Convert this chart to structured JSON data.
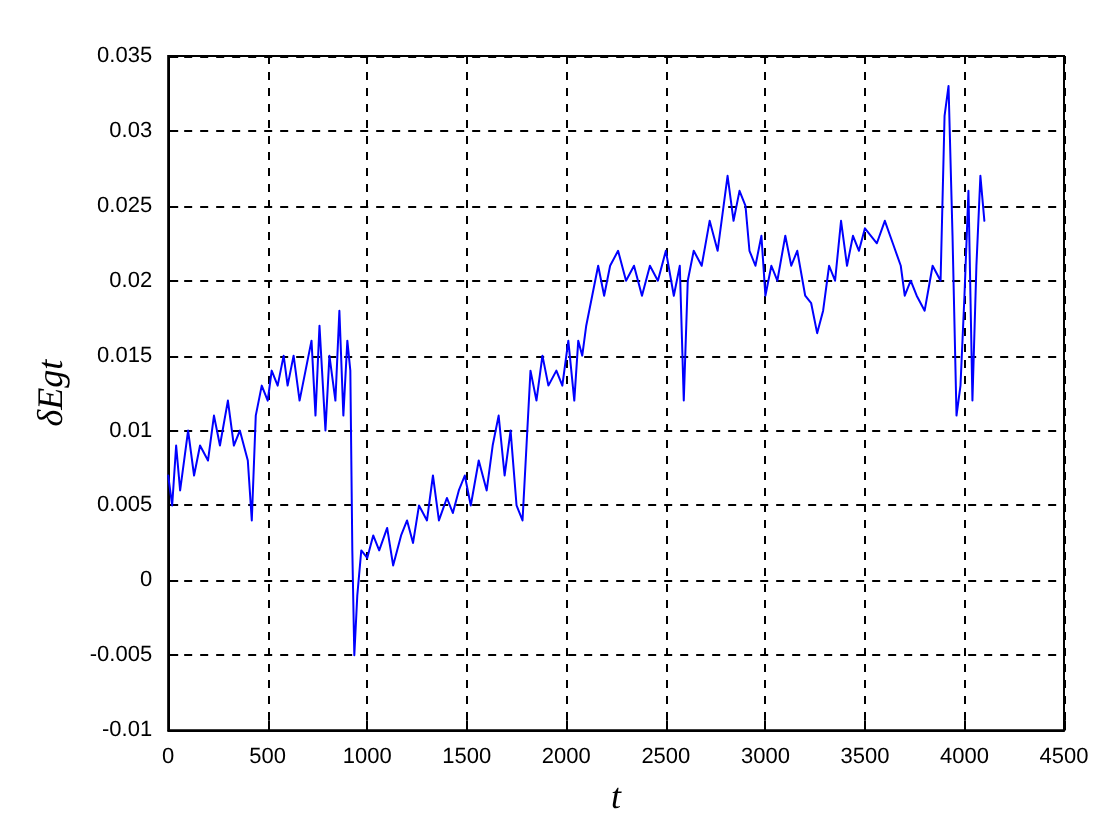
{
  "chart_data": {
    "type": "line",
    "xlabel": "t",
    "ylabel": "δEgt",
    "grid": true,
    "marker": "none",
    "line_style": "solid",
    "xlim": [
      0,
      4500
    ],
    "xticks": [
      0,
      500,
      1000,
      1500,
      2000,
      2500,
      3000,
      3500,
      4000,
      4500
    ],
    "ylim": [
      -0.01,
      0.035
    ],
    "yticks": [
      -0.01,
      -0.005,
      0,
      0.005,
      0.01,
      0.015,
      0.02,
      0.025,
      0.03,
      0.035
    ],
    "series": [
      {
        "color": "#0000ff",
        "x": [
          0,
          20,
          40,
          60,
          80,
          100,
          130,
          160,
          200,
          230,
          260,
          300,
          330,
          360,
          400,
          420,
          440,
          470,
          500,
          520,
          550,
          580,
          600,
          630,
          660,
          690,
          720,
          740,
          760,
          790,
          810,
          840,
          860,
          880,
          900,
          915,
          925,
          935,
          950,
          970,
          1000,
          1030,
          1060,
          1100,
          1130,
          1170,
          1200,
          1230,
          1260,
          1300,
          1330,
          1360,
          1400,
          1430,
          1460,
          1490,
          1520,
          1560,
          1600,
          1630,
          1660,
          1690,
          1720,
          1750,
          1780,
          1800,
          1820,
          1850,
          1880,
          1910,
          1950,
          1980,
          2010,
          2040,
          2060,
          2080,
          2100,
          2130,
          2160,
          2190,
          2220,
          2260,
          2300,
          2340,
          2380,
          2420,
          2460,
          2500,
          2540,
          2570,
          2590,
          2610,
          2640,
          2680,
          2720,
          2760,
          2790,
          2810,
          2840,
          2870,
          2900,
          2920,
          2950,
          2980,
          3000,
          3030,
          3060,
          3100,
          3130,
          3160,
          3200,
          3230,
          3260,
          3290,
          3320,
          3350,
          3380,
          3410,
          3440,
          3470,
          3500,
          3530,
          3560,
          3600,
          3640,
          3680,
          3700,
          3730,
          3760,
          3800,
          3840,
          3880,
          3900,
          3920,
          3940,
          3960,
          3980,
          4000,
          4020,
          4040,
          4060,
          4080,
          4100
        ],
        "values": [
          0.007,
          0.005,
          0.009,
          0.006,
          0.008,
          0.01,
          0.007,
          0.009,
          0.008,
          0.011,
          0.009,
          0.012,
          0.009,
          0.01,
          0.008,
          0.004,
          0.011,
          0.013,
          0.012,
          0.014,
          0.013,
          0.015,
          0.013,
          0.015,
          0.012,
          0.014,
          0.016,
          0.011,
          0.017,
          0.01,
          0.015,
          0.012,
          0.018,
          0.011,
          0.016,
          0.014,
          0.002,
          -0.005,
          -0.001,
          0.002,
          0.0015,
          0.003,
          0.002,
          0.0035,
          0.001,
          0.003,
          0.004,
          0.0025,
          0.005,
          0.004,
          0.007,
          0.004,
          0.0055,
          0.0045,
          0.006,
          0.007,
          0.005,
          0.008,
          0.006,
          0.009,
          0.011,
          0.007,
          0.01,
          0.005,
          0.004,
          0.009,
          0.014,
          0.012,
          0.015,
          0.013,
          0.014,
          0.013,
          0.016,
          0.012,
          0.016,
          0.015,
          0.017,
          0.019,
          0.021,
          0.019,
          0.021,
          0.022,
          0.02,
          0.021,
          0.019,
          0.021,
          0.02,
          0.022,
          0.019,
          0.021,
          0.012,
          0.02,
          0.022,
          0.021,
          0.024,
          0.022,
          0.025,
          0.027,
          0.024,
          0.026,
          0.025,
          0.022,
          0.021,
          0.023,
          0.019,
          0.021,
          0.02,
          0.023,
          0.021,
          0.022,
          0.019,
          0.0185,
          0.0165,
          0.018,
          0.021,
          0.02,
          0.024,
          0.021,
          0.023,
          0.022,
          0.0235,
          0.023,
          0.0225,
          0.024,
          0.0225,
          0.021,
          0.019,
          0.02,
          0.019,
          0.018,
          0.021,
          0.02,
          0.031,
          0.033,
          0.023,
          0.011,
          0.013,
          0.019,
          0.026,
          0.012,
          0.021,
          0.027,
          0.024
        ]
      }
    ]
  }
}
